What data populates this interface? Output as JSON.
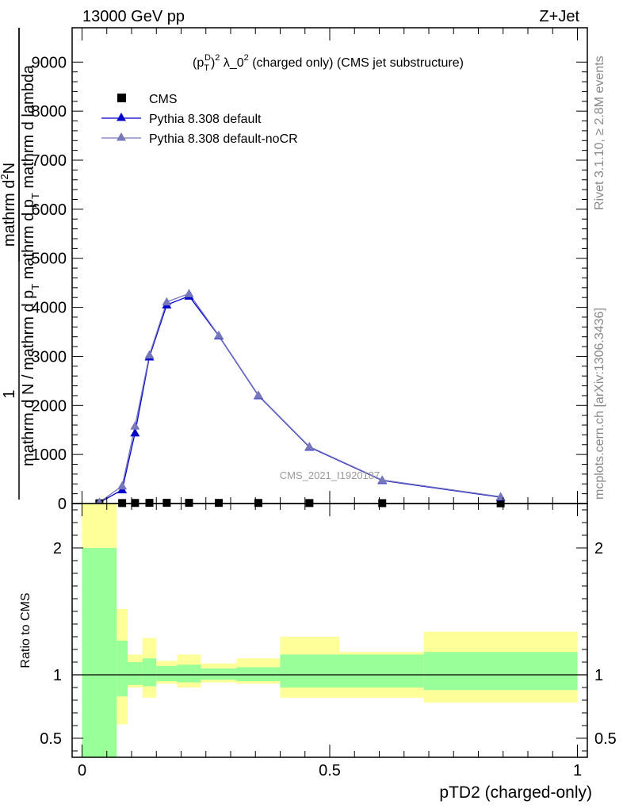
{
  "header": {
    "left": "13000 GeV pp",
    "right": "Z+Jet"
  },
  "side_labels": {
    "rivet": "Rivet 3.1.10, ≥ 2.8M events",
    "mcplots": "mcplots.cern.ch [arXiv:1306.3436]"
  },
  "watermark": "CMS_2021_I1920187",
  "main_title": {
    "base": "(p",
    "sub": "T",
    "sup": "D",
    "rest": ")",
    "sup2": "2",
    "tail": " λ_0",
    "sup3": "2",
    "end": " (charged only) (CMS jet substructure)"
  },
  "ylabel_main": {
    "numerator": "1",
    "frac1_top": "mathrm d",
    "frac1_top_sup": "2",
    "frac1_top_N": "N",
    "frac1_bottom": "mathrm d N / mathrm d p",
    "frac1_bottom_sub": "T",
    "frac1_bottom_rest": " mathrm d p",
    "frac1_bottom_sub2": "T",
    "frac1_bottom_end": " mathrm d lambda"
  },
  "ylabel_ratio": "Ratio to CMS",
  "xlabel": "pTD2 (charged-only)",
  "legend": [
    {
      "name": "CMS",
      "color": "#000000",
      "marker": "square"
    },
    {
      "name": "Pythia 8.308 default",
      "color": "#0000cc",
      "marker": "triangle"
    },
    {
      "name": "Pythia 8.308 default-noCR",
      "color": "#7777bb",
      "marker": "triangle"
    }
  ],
  "chart_data": {
    "type": "line",
    "xlim": [
      -0.02,
      1.02
    ],
    "ylim": [
      0,
      9700
    ],
    "ratio_ylim": [
      0.35,
      2.35
    ],
    "main_yticks": [
      0,
      1000,
      2000,
      3000,
      4000,
      5000,
      6000,
      7000,
      8000,
      9000
    ],
    "main_ytick_labels": [
      "0",
      "1000",
      "2000",
      "3000",
      "4000",
      "5000",
      "6000",
      "7000",
      "8000",
      "9000"
    ],
    "ratio_yticks": [
      0.5,
      1,
      2
    ],
    "ratio_ytick_labels": [
      "0.5",
      "1",
      "2"
    ],
    "xticks": [
      0,
      0.5,
      1
    ],
    "xtick_labels": [
      "0",
      "0.5",
      "1"
    ],
    "series": [
      {
        "name": "CMS",
        "color": "#000000",
        "x": [
          0.035,
          0.081,
          0.107,
          0.136,
          0.171,
          0.216,
          0.276,
          0.356,
          0.459,
          0.606,
          0.845
        ],
        "values": [
          5,
          10,
          12,
          14,
          15,
          14,
          13,
          12,
          10,
          8,
          5
        ]
      },
      {
        "name": "Pythia 8.308 default",
        "color": "#0000cc",
        "x": [
          0.035,
          0.081,
          0.107,
          0.136,
          0.171,
          0.216,
          0.276,
          0.356,
          0.459,
          0.606,
          0.845
        ],
        "values": [
          20,
          280,
          1440,
          2990,
          4050,
          4230,
          3420,
          2200,
          1150,
          470,
          130
        ]
      },
      {
        "name": "Pythia 8.308 default-noCR",
        "color": "#7777bb",
        "x": [
          0.035,
          0.081,
          0.107,
          0.136,
          0.171,
          0.216,
          0.276,
          0.356,
          0.459,
          0.606,
          0.845
        ],
        "values": [
          25,
          360,
          1580,
          3030,
          4110,
          4280,
          3430,
          2210,
          1160,
          480,
          140
        ]
      }
    ],
    "ratio_bands": {
      "edges": [
        0,
        0.07,
        0.092,
        0.122,
        0.15,
        0.192,
        0.24,
        0.312,
        0.4,
        0.52,
        0.69,
        1.0
      ],
      "green_hi": [
        2.0,
        1.27,
        1.1,
        1.13,
        1.07,
        1.08,
        1.05,
        1.06,
        1.16,
        1.16,
        1.18
      ],
      "green_lo": [
        0.3,
        0.83,
        0.92,
        0.91,
        0.95,
        0.94,
        0.96,
        0.95,
        0.9,
        0.9,
        0.88
      ],
      "yellow_hi": [
        2.35,
        1.52,
        1.16,
        1.29,
        1.11,
        1.16,
        1.09,
        1.13,
        1.3,
        1.18,
        1.34
      ],
      "yellow_lo": [
        0.3,
        0.61,
        0.9,
        0.82,
        0.93,
        0.9,
        0.94,
        0.93,
        0.82,
        0.82,
        0.78
      ]
    },
    "ratio_colors": {
      "green": "#99ff99",
      "yellow": "#ffff99"
    },
    "grid": false
  }
}
